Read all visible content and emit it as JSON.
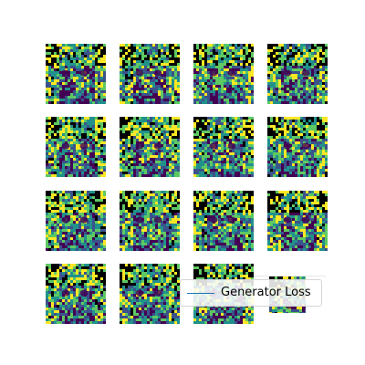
{
  "grid": {
    "rows": 4,
    "cols": 4,
    "cells": 16,
    "colormap": "viridis",
    "palette": [
      "#440154",
      "#3b528b",
      "#21918c",
      "#5ec962",
      "#fde725"
    ],
    "cell_icon": "generated-anime-face-image"
  },
  "legend": {
    "label": "Generator Loss",
    "line_color": "#1f77b4",
    "placement": "lower-right"
  }
}
